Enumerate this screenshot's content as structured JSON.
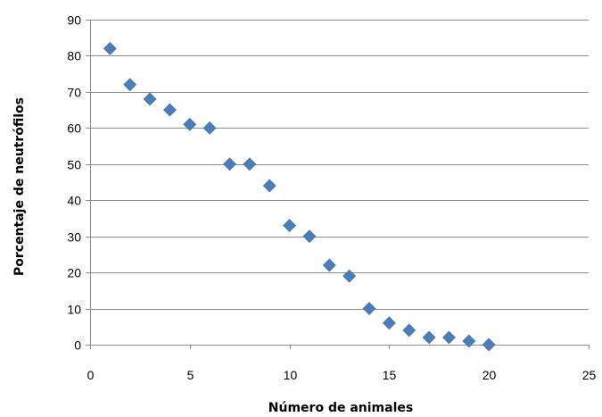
{
  "chart_data": {
    "type": "scatter",
    "title": "",
    "xlabel": "Número de animales",
    "ylabel": "Porcentaje de neutrófilos",
    "xlim": [
      0,
      25
    ],
    "ylim": [
      0,
      90
    ],
    "x_ticks": [
      0,
      5,
      10,
      15,
      20,
      25
    ],
    "y_ticks": [
      0,
      10,
      20,
      30,
      40,
      50,
      60,
      70,
      80,
      90
    ],
    "x_tick_labels": [
      "0",
      "5",
      "10",
      "15",
      "20",
      "25"
    ],
    "y_tick_labels": [
      "0",
      "10",
      "20",
      "30",
      "40",
      "50",
      "60",
      "70",
      "80",
      "90"
    ],
    "grid": "horizontal",
    "legend": "none",
    "marker": "diamond",
    "series": [
      {
        "color": "#4a7ebb",
        "points": [
          {
            "x": 1,
            "y": 82
          },
          {
            "x": 2,
            "y": 72
          },
          {
            "x": 3,
            "y": 68
          },
          {
            "x": 4,
            "y": 65
          },
          {
            "x": 5,
            "y": 61
          },
          {
            "x": 6,
            "y": 60
          },
          {
            "x": 7,
            "y": 50
          },
          {
            "x": 8,
            "y": 50
          },
          {
            "x": 9,
            "y": 44
          },
          {
            "x": 10,
            "y": 33
          },
          {
            "x": 11,
            "y": 30
          },
          {
            "x": 12,
            "y": 22
          },
          {
            "x": 13,
            "y": 19
          },
          {
            "x": 14,
            "y": 10
          },
          {
            "x": 15,
            "y": 6
          },
          {
            "x": 16,
            "y": 4
          },
          {
            "x": 17,
            "y": 2
          },
          {
            "x": 18,
            "y": 2
          },
          {
            "x": 19,
            "y": 1
          },
          {
            "x": 20,
            "y": 0
          }
        ]
      }
    ]
  }
}
